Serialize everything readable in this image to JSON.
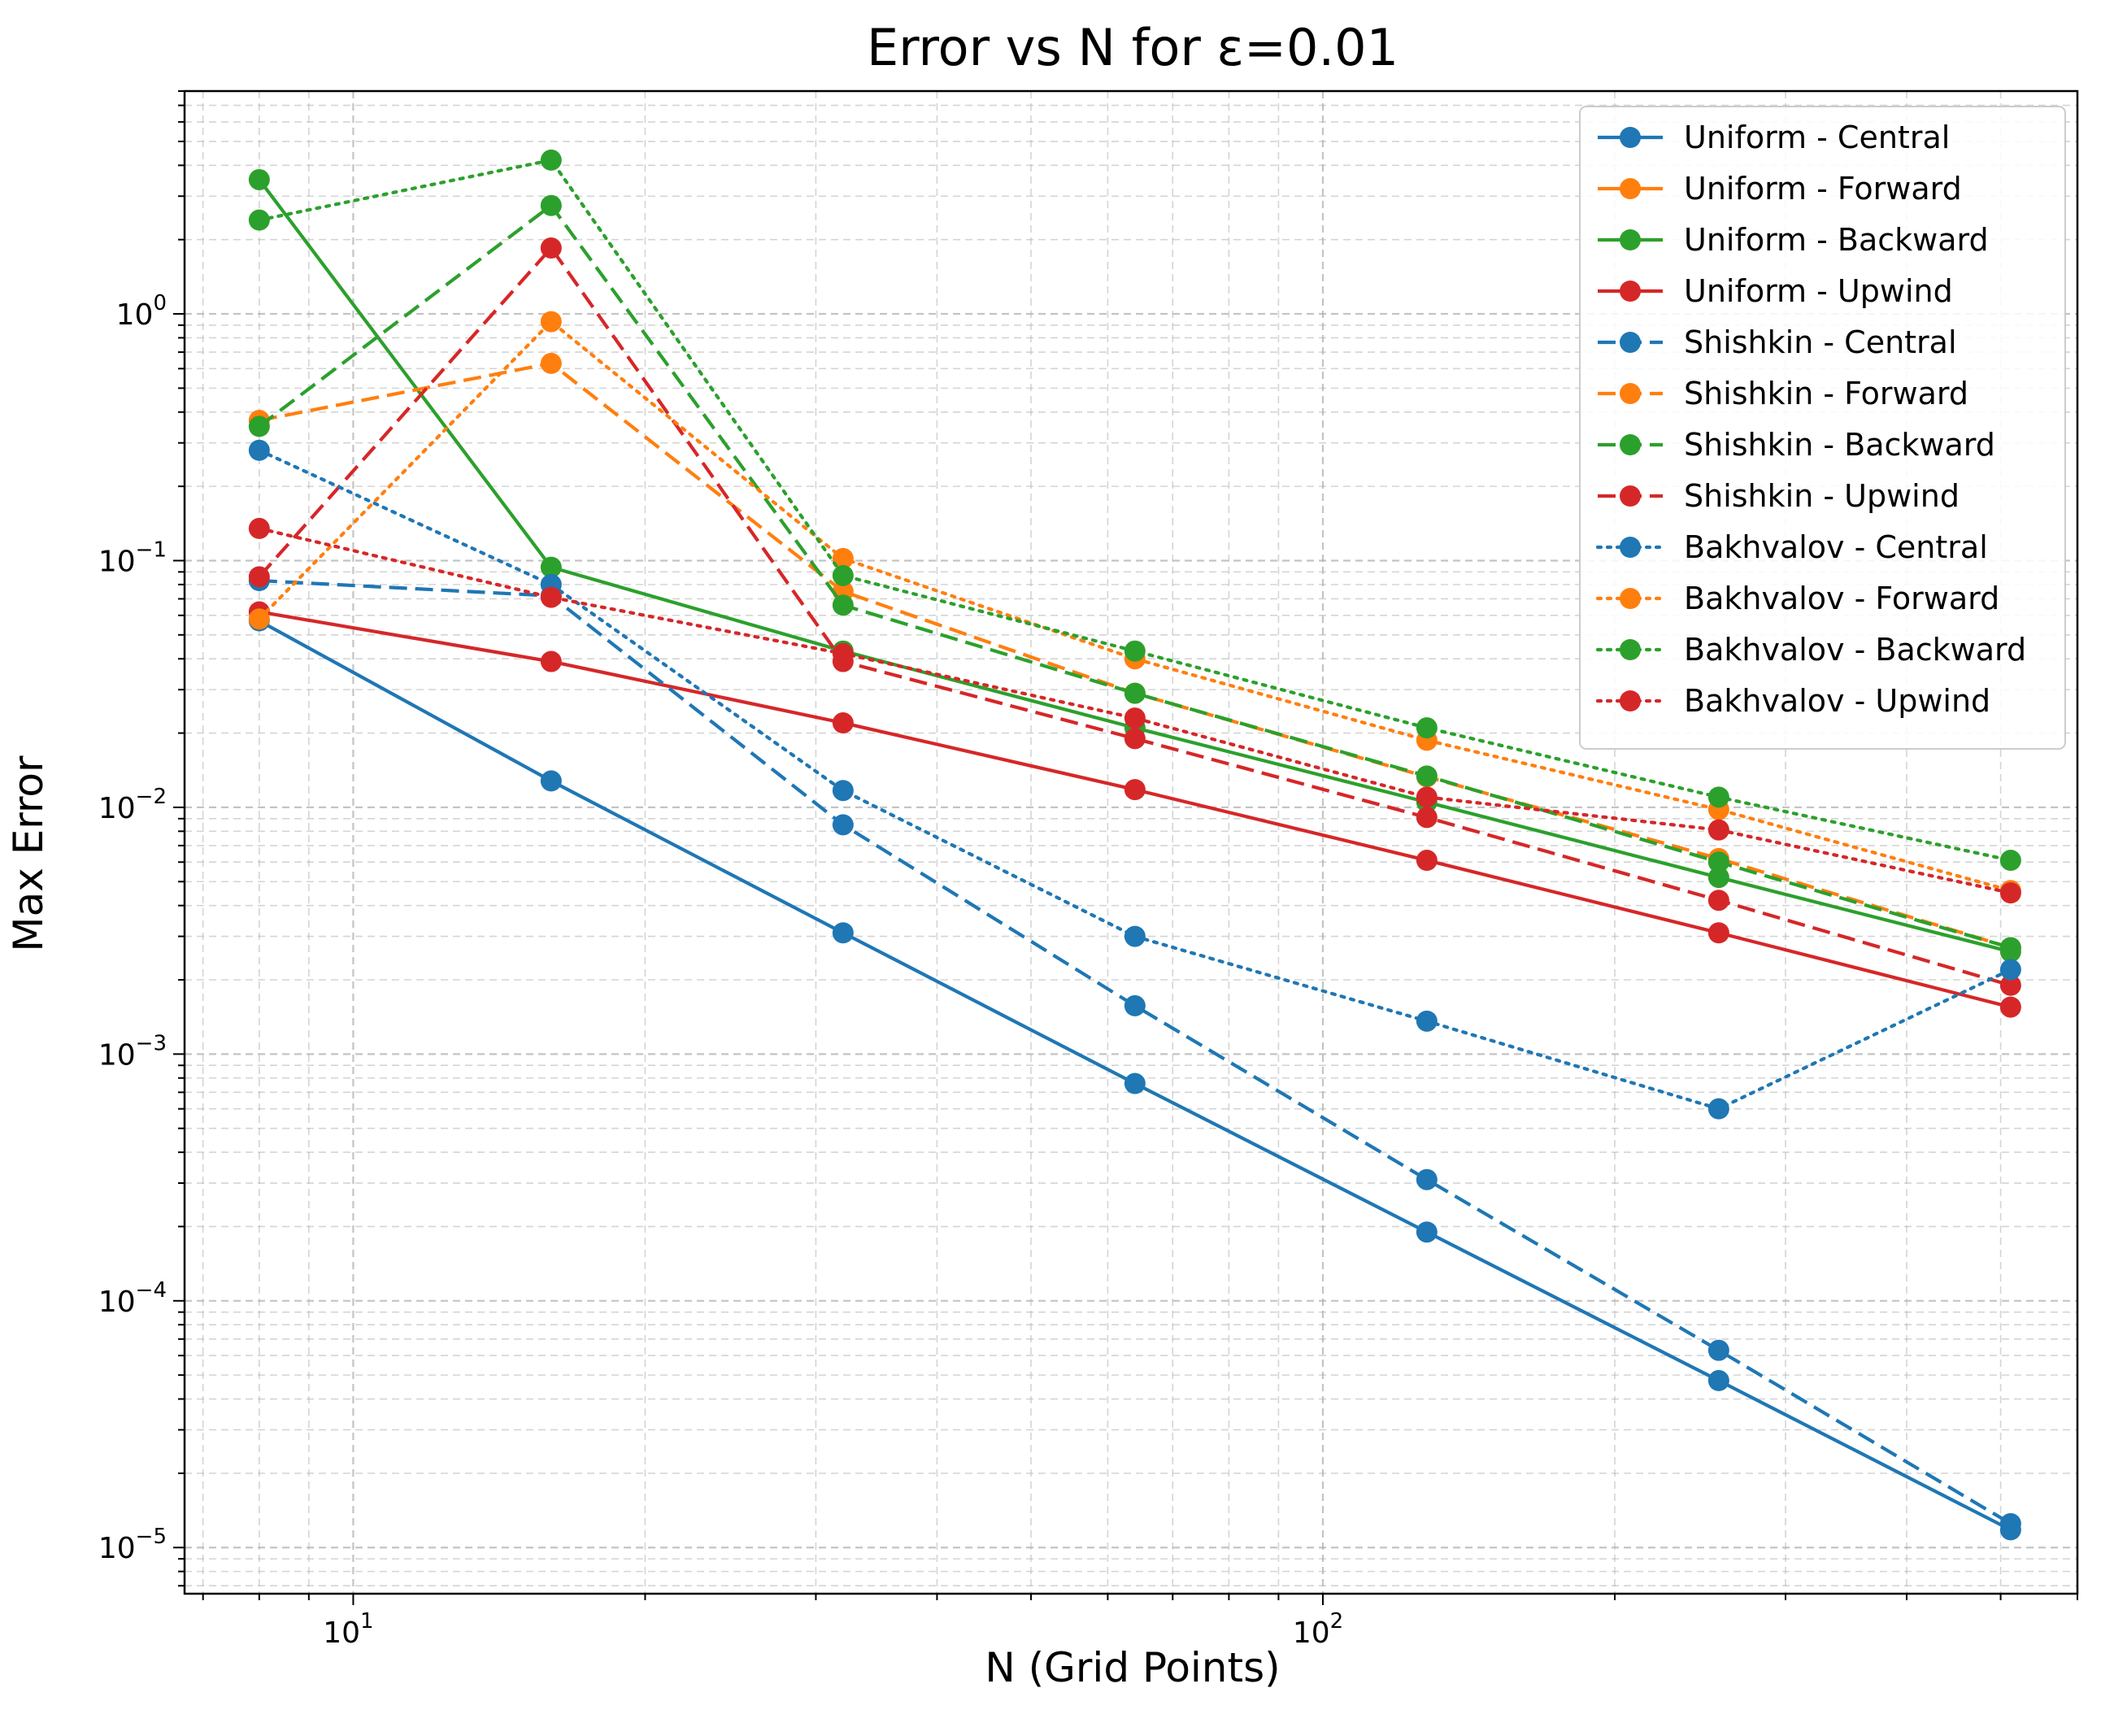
{
  "chart_data": {
    "type": "line",
    "title": "Error vs N for ε=0.01",
    "xlabel": "N (Grid Points)",
    "ylabel": "Max Error",
    "xscale": "log",
    "yscale": "log",
    "xlim": [
      6.7,
      600
    ],
    "ylim": [
      6.5e-06,
      8
    ],
    "x": [
      8,
      16,
      32,
      64,
      128,
      256,
      512
    ],
    "grid": true,
    "grid_minor": true,
    "legend_position": "top-right",
    "x_ticks": [
      {
        "value": 10,
        "base": "10",
        "exp": "1"
      },
      {
        "value": 100,
        "base": "10",
        "exp": "2"
      }
    ],
    "y_ticks": [
      {
        "value": 1,
        "base": "10",
        "exp": "0"
      },
      {
        "value": 0.1,
        "base": "10",
        "exp": "−1"
      },
      {
        "value": 0.01,
        "base": "10",
        "exp": "−2"
      },
      {
        "value": 0.001,
        "base": "10",
        "exp": "−3"
      },
      {
        "value": 0.0001,
        "base": "10",
        "exp": "−4"
      },
      {
        "value": 1e-05,
        "base": "10",
        "exp": "−5"
      }
    ],
    "series": [
      {
        "name": "Uniform - Central",
        "color": "#1f77b4",
        "linestyle": "solid",
        "values": [
          0.057,
          0.0128,
          0.0031,
          0.00076,
          0.00019,
          4.75e-05,
          1.18e-05
        ]
      },
      {
        "name": "Uniform - Forward",
        "color": "#ff7f0e",
        "linestyle": "solid",
        "values": [
          null,
          null,
          null,
          null,
          null,
          null,
          null
        ]
      },
      {
        "name": "Uniform - Backward",
        "color": "#2ca02c",
        "linestyle": "solid",
        "values": [
          3.5,
          0.094,
          0.043,
          0.021,
          0.0105,
          0.0052,
          0.0026
        ]
      },
      {
        "name": "Uniform - Upwind",
        "color": "#d62728",
        "linestyle": "solid",
        "values": [
          0.062,
          0.039,
          0.022,
          0.0118,
          0.0061,
          0.0031,
          0.00155
        ]
      },
      {
        "name": "Shishkin - Central",
        "color": "#1f77b4",
        "linestyle": "dashed",
        "values": [
          0.083,
          0.072,
          0.0085,
          0.00157,
          0.00031,
          6.3e-05,
          1.25e-05
        ]
      },
      {
        "name": "Shishkin - Forward",
        "color": "#ff7f0e",
        "linestyle": "dashed",
        "values": [
          0.37,
          0.63,
          0.075,
          0.029,
          0.0133,
          0.0062,
          0.0027
        ]
      },
      {
        "name": "Shishkin - Backward",
        "color": "#2ca02c",
        "linestyle": "dashed",
        "values": [
          0.35,
          2.75,
          0.066,
          0.029,
          0.0134,
          0.006,
          0.0027
        ]
      },
      {
        "name": "Shishkin - Upwind",
        "color": "#d62728",
        "linestyle": "dashed",
        "values": [
          0.086,
          1.85,
          0.039,
          0.019,
          0.0091,
          0.0042,
          0.0019
        ]
      },
      {
        "name": "Bakhvalov - Central",
        "color": "#1f77b4",
        "linestyle": "dotted",
        "values": [
          0.28,
          0.08,
          0.0117,
          0.003,
          0.00136,
          0.0006,
          0.0022
        ]
      },
      {
        "name": "Bakhvalov - Forward",
        "color": "#ff7f0e",
        "linestyle": "dotted",
        "values": [
          0.058,
          0.93,
          0.102,
          0.04,
          0.0187,
          0.0098,
          0.0046
        ]
      },
      {
        "name": "Bakhvalov - Backward",
        "color": "#2ca02c",
        "linestyle": "dotted",
        "values": [
          2.4,
          4.2,
          0.087,
          0.043,
          0.021,
          0.011,
          0.0061
        ]
      },
      {
        "name": "Bakhvalov - Upwind",
        "color": "#d62728",
        "linestyle": "dotted",
        "values": [
          0.135,
          0.071,
          0.042,
          0.023,
          0.011,
          0.0081,
          0.0045
        ]
      }
    ]
  }
}
